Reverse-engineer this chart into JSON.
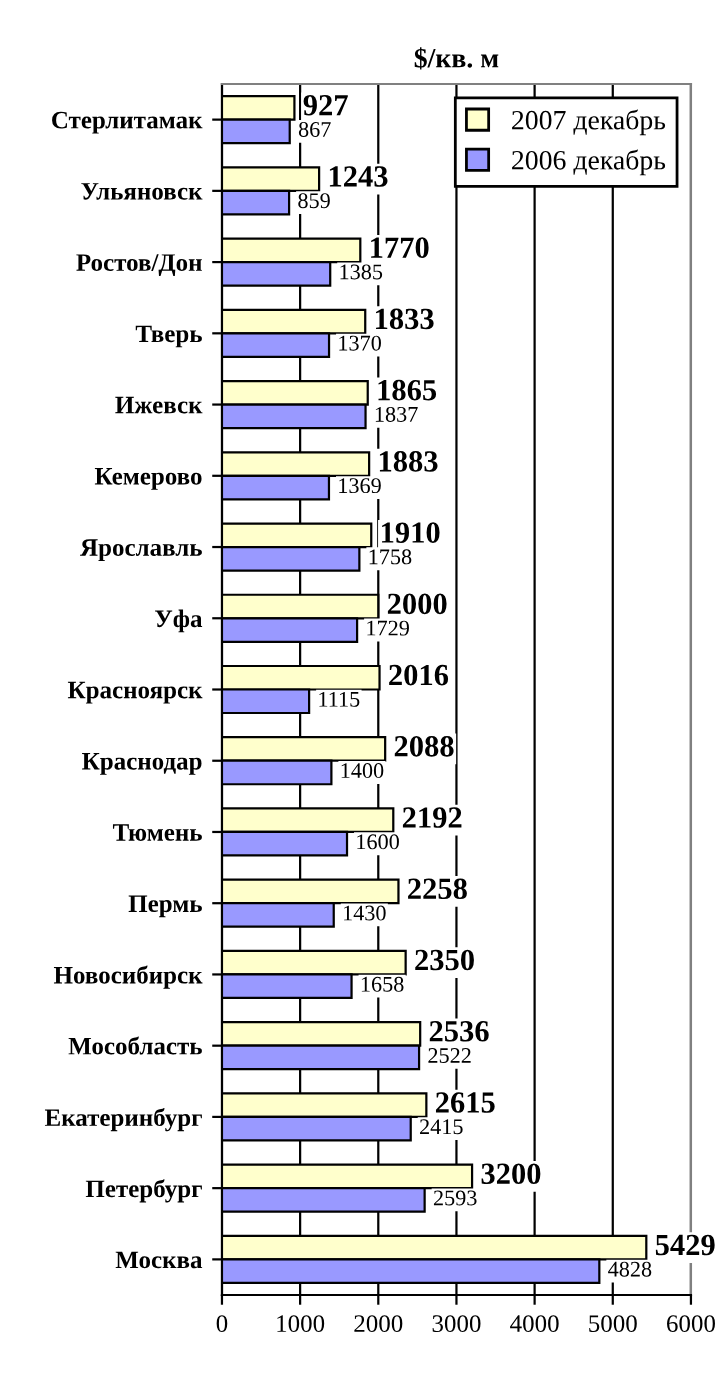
{
  "chart_data": {
    "type": "bar",
    "orientation": "horizontal",
    "title": "$/кв. м",
    "categories": [
      "Стерлитамак",
      "Ульяновск",
      "Ростов/Дон",
      "Тверь",
      "Ижевск",
      "Кемерово",
      "Ярославль",
      "Уфа",
      "Красноярск",
      "Краснодар",
      "Тюмень",
      "Пермь",
      "Новосибирск",
      "Мособласть",
      "Екатеринбург",
      "Петербург",
      "Москва"
    ],
    "series": [
      {
        "name": "2007 декабрь",
        "color": "#ffffcc",
        "values": [
          927,
          1243,
          1770,
          1833,
          1865,
          1883,
          1910,
          2000,
          2016,
          2088,
          2192,
          2258,
          2350,
          2536,
          2615,
          3200,
          5429
        ]
      },
      {
        "name": "2006 декабрь",
        "color": "#9999ff",
        "values": [
          867,
          859,
          1385,
          1370,
          1837,
          1369,
          1758,
          1729,
          1115,
          1400,
          1600,
          1430,
          1658,
          2522,
          2415,
          2593,
          4828
        ]
      }
    ],
    "xlim": [
      0,
      6000
    ],
    "xticks": [
      0,
      1000,
      2000,
      3000,
      4000,
      5000,
      6000
    ],
    "grid": "x",
    "legend": "top right",
    "data_labels": true
  }
}
